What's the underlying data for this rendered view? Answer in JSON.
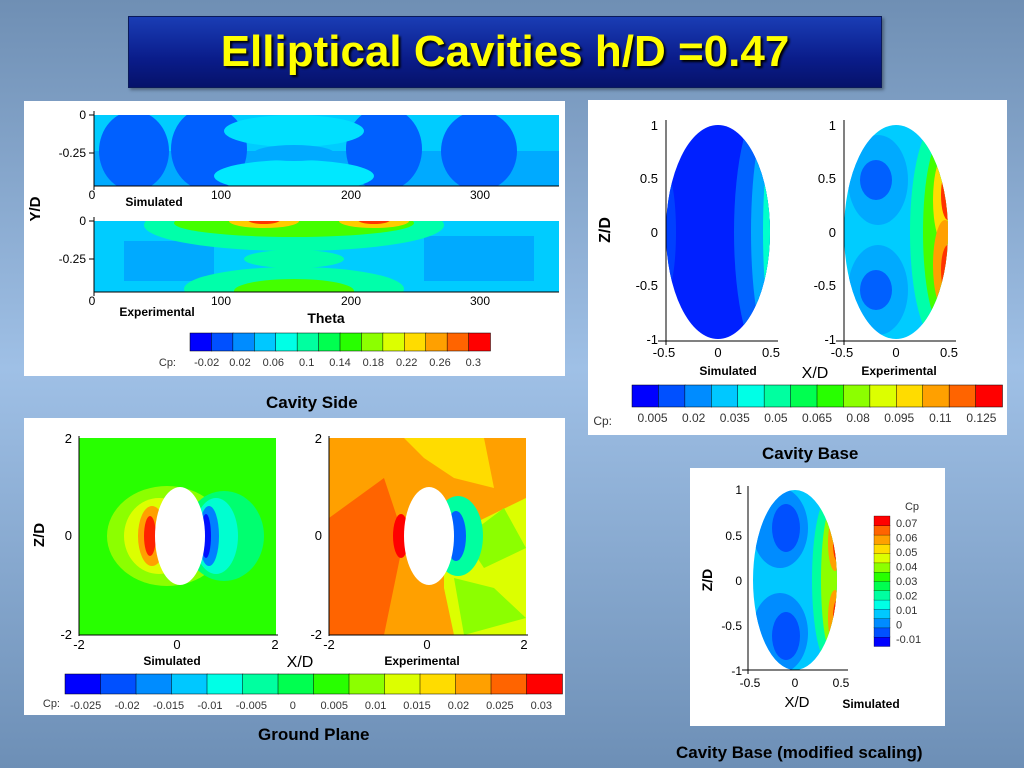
{
  "title": "Elliptical Cavities h/D =0.47",
  "colors": {
    "ramp": [
      "#0000ff",
      "#0050ff",
      "#008cff",
      "#00c8ff",
      "#00ffe6",
      "#00ffa0",
      "#00ff50",
      "#28ff00",
      "#8cff00",
      "#dcff00",
      "#ffdc00",
      "#ffa000",
      "#ff6400",
      "#ff0000"
    ]
  },
  "captions": {
    "cavity_side": "Cavity Side",
    "cavity_base": "Cavity Base",
    "ground_plane": "Ground Plane",
    "cavity_base_mod": "Cavity Base (modified scaling)"
  },
  "chart_data": [
    {
      "type": "heatmap",
      "name": "cavity-side",
      "xlabel": "Theta",
      "ylabel": "Y/D",
      "xlim": [
        0,
        360
      ],
      "ylim": [
        -0.47,
        0
      ],
      "x_ticks": [
        "0",
        "100",
        "200",
        "300"
      ],
      "y_ticks": [
        "0",
        "-0.25"
      ],
      "panels": [
        "Simulated",
        "Experimental"
      ],
      "colorbar": {
        "label": "Cp:",
        "ticks": [
          "-0.02",
          "0.02",
          "0.06",
          "0.1",
          "0.14",
          "0.18",
          "0.22",
          "0.26",
          "0.3"
        ]
      }
    },
    {
      "type": "heatmap",
      "name": "cavity-base",
      "xlabel": "X/D",
      "ylabel": "Z/D",
      "xlim": [
        -0.5,
        0.5
      ],
      "ylim": [
        -1,
        1
      ],
      "x_ticks": [
        "-0.5",
        "0",
        "0.5"
      ],
      "y_ticks": [
        "1",
        "0.5",
        "0",
        "-0.5",
        "-1"
      ],
      "panels": [
        "Simulated",
        "Experimental"
      ],
      "colorbar": {
        "label": "Cp:",
        "ticks": [
          "0.005",
          "0.02",
          "0.035",
          "0.05",
          "0.065",
          "0.08",
          "0.095",
          "0.11",
          "0.125"
        ]
      }
    },
    {
      "type": "heatmap",
      "name": "ground-plane",
      "xlabel": "X/D",
      "ylabel": "Z/D",
      "xlim": [
        -2,
        2
      ],
      "ylim": [
        -2,
        2
      ],
      "x_ticks": [
        "-2",
        "0",
        "2"
      ],
      "y_ticks": [
        "2",
        "0",
        "-2"
      ],
      "panels": [
        "Simulated",
        "Experimental"
      ],
      "colorbar": {
        "label": "Cp:",
        "ticks": [
          "-0.025",
          "-0.02",
          "-0.015",
          "-0.01",
          "-0.005",
          "0",
          "0.005",
          "0.01",
          "0.015",
          "0.02",
          "0.025",
          "0.03"
        ]
      }
    },
    {
      "type": "heatmap",
      "name": "cavity-base-modified",
      "xlabel": "X/D",
      "ylabel": "Z/D",
      "xlim": [
        -0.5,
        0.5
      ],
      "ylim": [
        -1,
        1
      ],
      "x_ticks": [
        "-0.5",
        "0",
        "0.5"
      ],
      "y_ticks": [
        "1",
        "0.5",
        "0",
        "-0.5",
        "-1"
      ],
      "panels": [
        "Simulated"
      ],
      "colorbar": {
        "label": "Cp",
        "ticks": [
          "0.07",
          "0.06",
          "0.05",
          "0.04",
          "0.03",
          "0.02",
          "0.01",
          "0",
          "-0.01"
        ]
      }
    }
  ]
}
